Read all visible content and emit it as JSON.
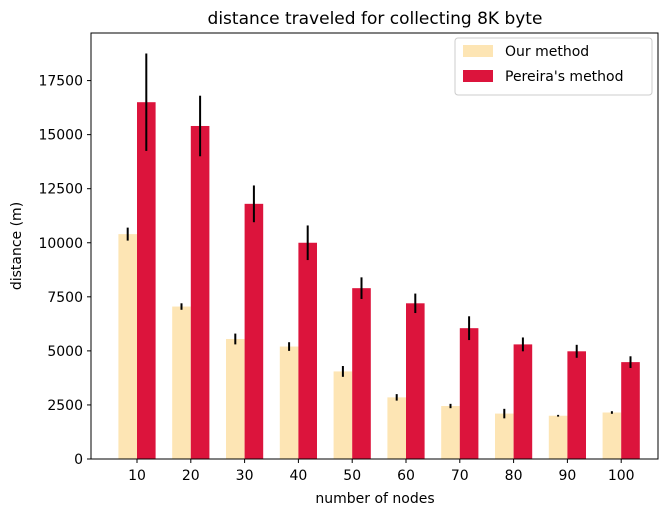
{
  "chart_data": {
    "type": "bar",
    "title": "distance traveled for collecting 8K byte",
    "xlabel": "number of nodes",
    "ylabel": "distance (m)",
    "categories": [
      "10",
      "20",
      "30",
      "40",
      "50",
      "60",
      "70",
      "80",
      "90",
      "100"
    ],
    "ylim": [
      0,
      19700
    ],
    "yticks": [
      0,
      2500,
      5000,
      7500,
      10000,
      12500,
      15000,
      17500
    ],
    "legend_position": "top-right",
    "grid": false,
    "series": [
      {
        "name": "Our method",
        "color": "#fde5b4",
        "values": [
          10400,
          7050,
          5550,
          5200,
          4050,
          2850,
          2450,
          2100,
          2000,
          2150
        ],
        "errors": [
          300,
          150,
          250,
          200,
          250,
          150,
          100,
          220,
          40,
          60
        ]
      },
      {
        "name": "Pereira's method",
        "color": "#dc143c",
        "values": [
          16500,
          15400,
          11800,
          10000,
          7900,
          7200,
          6050,
          5300,
          4980,
          4480
        ],
        "errors": [
          2250,
          1400,
          850,
          800,
          500,
          450,
          550,
          320,
          300,
          270
        ]
      }
    ]
  }
}
